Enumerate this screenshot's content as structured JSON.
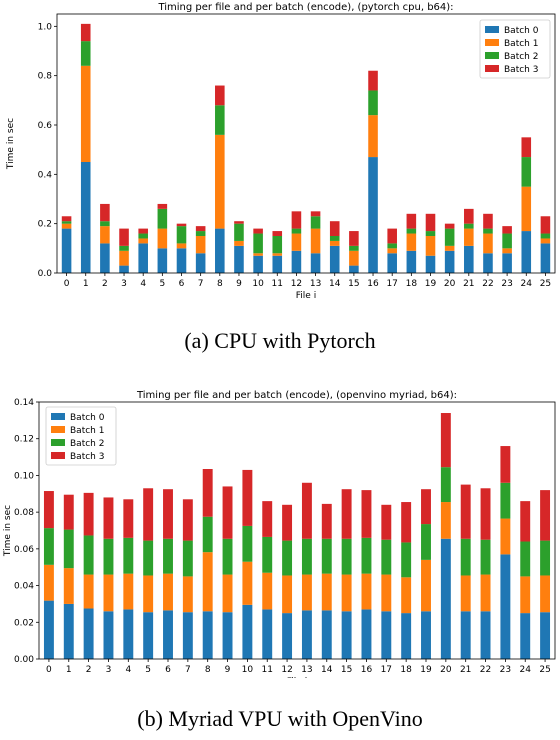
{
  "figure": {
    "caption_a": "(a) CPU with Pytorch",
    "caption_b": "(b) Myriad VPU with OpenVino"
  },
  "chart_data": [
    {
      "type": "bar",
      "stacked": true,
      "title": "Timing per file and per batch (encode), (pytorch cpu, b64):",
      "xlabel": "File i",
      "ylabel": "Time in sec",
      "ylim": [
        0,
        1.05
      ],
      "yticks": [
        "0.0",
        "0.2",
        "0.4",
        "0.6",
        "0.8",
        "1.0"
      ],
      "ytick_values": [
        0,
        0.2,
        0.4,
        0.6,
        0.8,
        1.0
      ],
      "categories": [
        "0",
        "1",
        "2",
        "3",
        "4",
        "5",
        "6",
        "7",
        "8",
        "9",
        "10",
        "11",
        "12",
        "13",
        "14",
        "15",
        "16",
        "17",
        "18",
        "19",
        "20",
        "21",
        "22",
        "23",
        "24",
        "25"
      ],
      "legend_position": "top-right",
      "grid": false,
      "series": [
        {
          "name": "Batch 0",
          "color": "#1f77b4",
          "values": [
            0.18,
            0.45,
            0.12,
            0.03,
            0.12,
            0.1,
            0.1,
            0.08,
            0.18,
            0.11,
            0.07,
            0.07,
            0.09,
            0.08,
            0.11,
            0.03,
            0.47,
            0.08,
            0.09,
            0.07,
            0.09,
            0.11,
            0.08,
            0.08,
            0.17,
            0.12
          ]
        },
        {
          "name": "Batch 1",
          "color": "#ff7f0e",
          "values": [
            0.02,
            0.39,
            0.07,
            0.06,
            0.02,
            0.08,
            0.02,
            0.07,
            0.38,
            0.02,
            0.01,
            0.01,
            0.07,
            0.1,
            0.02,
            0.06,
            0.17,
            0.02,
            0.07,
            0.08,
            0.02,
            0.07,
            0.08,
            0.02,
            0.18,
            0.02
          ]
        },
        {
          "name": "Batch 2",
          "color": "#2ca02c",
          "values": [
            0.01,
            0.1,
            0.02,
            0.02,
            0.02,
            0.08,
            0.07,
            0.02,
            0.12,
            0.07,
            0.08,
            0.07,
            0.02,
            0.05,
            0.02,
            0.02,
            0.1,
            0.02,
            0.02,
            0.02,
            0.07,
            0.02,
            0.02,
            0.06,
            0.12,
            0.02
          ]
        },
        {
          "name": "Batch 3",
          "color": "#d62728",
          "values": [
            0.02,
            0.07,
            0.07,
            0.07,
            0.02,
            0.02,
            0.01,
            0.02,
            0.08,
            0.01,
            0.02,
            0.02,
            0.07,
            0.02,
            0.06,
            0.06,
            0.08,
            0.06,
            0.06,
            0.07,
            0.02,
            0.06,
            0.06,
            0.03,
            0.08,
            0.07
          ]
        }
      ]
    },
    {
      "type": "bar",
      "stacked": true,
      "title": "Timing per file and per batch (encode), (openvino myriad, b64):",
      "xlabel": "File i",
      "ylabel": "Time in sec",
      "ylim": [
        0,
        0.14
      ],
      "yticks": [
        "0.00",
        "0.02",
        "0.04",
        "0.06",
        "0.08",
        "0.10",
        "0.12",
        "0.14"
      ],
      "ytick_values": [
        0,
        0.02,
        0.04,
        0.06,
        0.08,
        0.1,
        0.12,
        0.14
      ],
      "categories": [
        "0",
        "1",
        "2",
        "3",
        "4",
        "5",
        "6",
        "7",
        "8",
        "9",
        "10",
        "11",
        "12",
        "13",
        "14",
        "15",
        "16",
        "17",
        "18",
        "19",
        "20",
        "21",
        "22",
        "23",
        "24",
        "25"
      ],
      "legend_position": "top-left",
      "grid": false,
      "series": [
        {
          "name": "Batch 0",
          "color": "#1f77b4",
          "values": [
            0.0318,
            0.03,
            0.0275,
            0.026,
            0.027,
            0.0255,
            0.0265,
            0.0255,
            0.026,
            0.0255,
            0.0295,
            0.027,
            0.025,
            0.0265,
            0.0265,
            0.026,
            0.027,
            0.026,
            0.025,
            0.026,
            0.0655,
            0.026,
            0.026,
            0.057,
            0.025,
            0.0255
          ]
        },
        {
          "name": "Batch 1",
          "color": "#ff7f0e",
          "values": [
            0.0195,
            0.0195,
            0.0185,
            0.02,
            0.0195,
            0.02,
            0.02,
            0.0195,
            0.0322,
            0.0205,
            0.0235,
            0.02,
            0.0205,
            0.0195,
            0.02,
            0.02,
            0.0195,
            0.02,
            0.0195,
            0.028,
            0.02,
            0.0195,
            0.02,
            0.0195,
            0.02,
            0.02
          ]
        },
        {
          "name": "Batch 2",
          "color": "#2ca02c",
          "values": [
            0.02,
            0.021,
            0.0213,
            0.0195,
            0.0195,
            0.019,
            0.019,
            0.0195,
            0.0193,
            0.0195,
            0.0195,
            0.0195,
            0.019,
            0.0195,
            0.019,
            0.0195,
            0.0195,
            0.019,
            0.019,
            0.0195,
            0.019,
            0.02,
            0.019,
            0.0195,
            0.019,
            0.019
          ]
        },
        {
          "name": "Batch 3",
          "color": "#d62728",
          "values": [
            0.0202,
            0.019,
            0.0232,
            0.0225,
            0.021,
            0.0285,
            0.027,
            0.0225,
            0.026,
            0.0285,
            0.0305,
            0.0195,
            0.0195,
            0.0305,
            0.019,
            0.027,
            0.026,
            0.019,
            0.022,
            0.019,
            0.0295,
            0.0295,
            0.028,
            0.02,
            0.022,
            0.0275
          ]
        }
      ]
    }
  ]
}
